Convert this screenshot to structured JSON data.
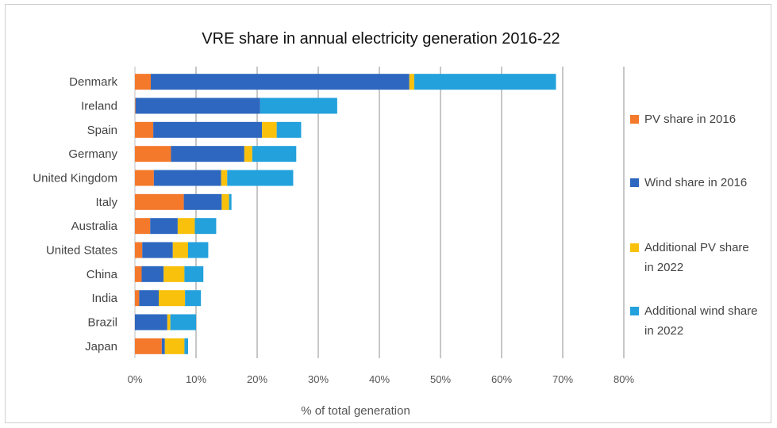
{
  "chart_data": {
    "type": "bar",
    "orientation": "horizontal",
    "stacked": true,
    "title": "VRE share in annual electricity generation 2016-22",
    "xlabel": "% of total generation",
    "ylabel": "",
    "xlim": [
      0,
      80
    ],
    "x_ticks": [
      "0%",
      "10%",
      "20%",
      "30%",
      "40%",
      "50%",
      "60%",
      "70%",
      "80%"
    ],
    "grid": "vertical",
    "legend_position": "right",
    "categories": [
      "Denmark",
      "Ireland",
      "Spain",
      "Germany",
      "United Kingdom",
      "Italy",
      "Australia",
      "United States",
      "China",
      "India",
      "Brazil",
      "Japan"
    ],
    "series": [
      {
        "name": "PV share in 2016",
        "color": "#f4792b",
        "values": [
          2.6,
          0.1,
          3.0,
          5.9,
          3.1,
          8.0,
          2.5,
          1.2,
          1.1,
          0.7,
          0.0,
          4.4
        ]
      },
      {
        "name": "Wind share in 2016",
        "color": "#2e67bf",
        "values": [
          42.3,
          20.4,
          17.8,
          12.0,
          11.0,
          6.2,
          4.5,
          5.0,
          3.6,
          3.2,
          5.3,
          0.5
        ]
      },
      {
        "name": "Additional PV share in 2022",
        "color": "#f9c10c",
        "values": [
          0.8,
          0.0,
          2.4,
          1.3,
          1.0,
          1.2,
          2.8,
          2.5,
          3.4,
          4.3,
          0.5,
          3.2
        ]
      },
      {
        "name": "Additional wind share in 2022",
        "color": "#23a1dc",
        "values": [
          23.2,
          12.6,
          4.0,
          7.2,
          10.8,
          0.4,
          3.5,
          3.3,
          3.1,
          2.6,
          4.2,
          0.6
        ]
      }
    ]
  },
  "legend": [
    {
      "line1": "PV share in 2016",
      "line2": ""
    },
    {
      "line1": "Wind share in 2016",
      "line2": ""
    },
    {
      "line1": "Additional PV share",
      "line2": "in 2022"
    },
    {
      "line1": "Additional wind share",
      "line2": "in 2022"
    }
  ]
}
